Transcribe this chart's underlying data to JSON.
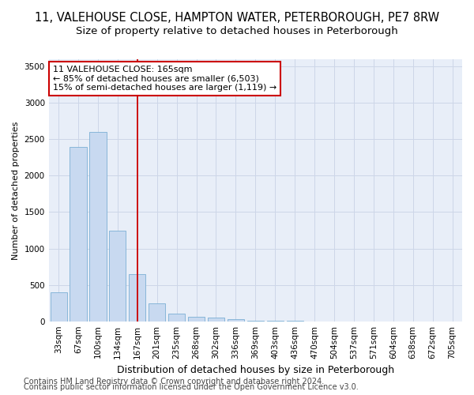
{
  "title_line1": "11, VALEHOUSE CLOSE, HAMPTON WATER, PETERBOROUGH, PE7 8RW",
  "title_line2": "Size of property relative to detached houses in Peterborough",
  "xlabel": "Distribution of detached houses by size in Peterborough",
  "ylabel": "Number of detached properties",
  "categories": [
    "33sqm",
    "67sqm",
    "100sqm",
    "134sqm",
    "167sqm",
    "201sqm",
    "235sqm",
    "268sqm",
    "302sqm",
    "336sqm",
    "369sqm",
    "403sqm",
    "436sqm",
    "470sqm",
    "504sqm",
    "537sqm",
    "571sqm",
    "604sqm",
    "638sqm",
    "672sqm",
    "705sqm"
  ],
  "values": [
    400,
    2400,
    2600,
    1250,
    650,
    250,
    100,
    60,
    50,
    30,
    10,
    5,
    2,
    0,
    0,
    0,
    0,
    0,
    0,
    0,
    0
  ],
  "bar_color": "#c8d9f0",
  "bar_edge_color": "#7bafd4",
  "vline_index": 4,
  "vline_color": "#cc0000",
  "annotation_text": "11 VALEHOUSE CLOSE: 165sqm\n← 85% of detached houses are smaller (6,503)\n15% of semi-detached houses are larger (1,119) →",
  "annotation_box_color": "#ffffff",
  "annotation_box_edge": "#cc0000",
  "ylim": [
    0,
    3600
  ],
  "yticks": [
    0,
    500,
    1000,
    1500,
    2000,
    2500,
    3000,
    3500
  ],
  "grid_color": "#cdd6e8",
  "background_color": "#e8eef8",
  "footer_line1": "Contains HM Land Registry data © Crown copyright and database right 2024.",
  "footer_line2": "Contains public sector information licensed under the Open Government Licence v3.0.",
  "title_fontsize": 10.5,
  "subtitle_fontsize": 9.5,
  "ylabel_fontsize": 8,
  "xlabel_fontsize": 9,
  "tick_fontsize": 7.5,
  "annotation_fontsize": 8,
  "footer_fontsize": 7
}
